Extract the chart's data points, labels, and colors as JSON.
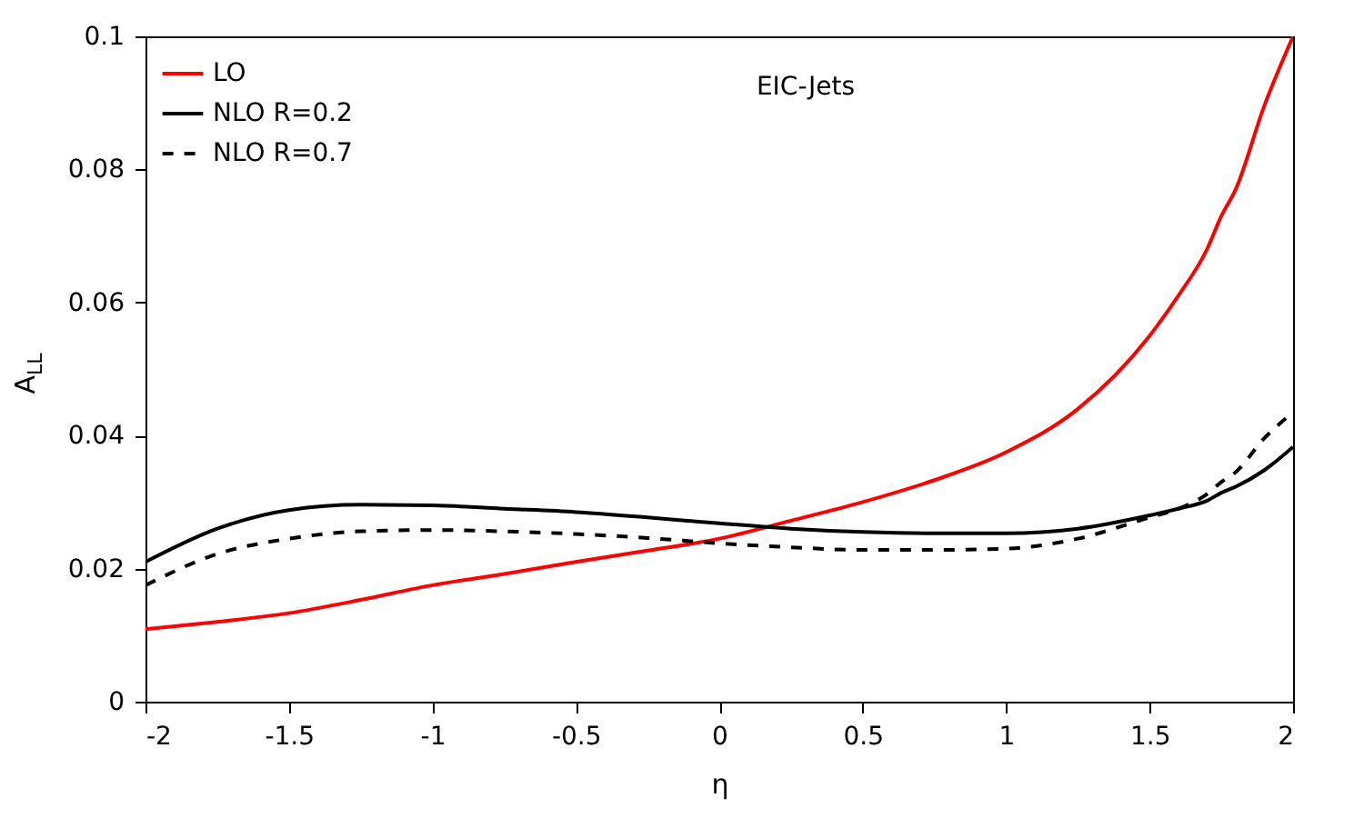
{
  "chart_data": {
    "type": "line",
    "xlabel": "η",
    "ylabel": "A$_{LL}$",
    "annotations": [
      "EIC-Jets"
    ],
    "legend": "top left",
    "grid": false,
    "x": [
      -2,
      -1.75,
      -1.5,
      -1.25,
      -1,
      -0.75,
      -0.5,
      -0.25,
      0,
      0.25,
      0.5,
      0.75,
      1,
      1.25,
      1.5,
      1.6,
      1.7,
      1.75,
      1.8,
      1.9,
      2
    ],
    "series": [
      {
        "name": "LO",
        "color": "#ff0000",
        "line_style": "solid",
        "values": [
          0.0109,
          0.012,
          0.0133,
          0.0153,
          0.0175,
          0.0192,
          0.021,
          0.0227,
          0.0245,
          0.0272,
          0.03,
          0.0333,
          0.0375,
          0.044,
          0.055,
          0.061,
          0.068,
          0.073,
          0.077,
          0.0896,
          0.1
        ]
      },
      {
        "name": "NLO R=0.2",
        "color": "#000000",
        "line_style": "solid",
        "values": [
          0.021,
          0.026,
          0.0288,
          0.0296,
          0.0295,
          0.029,
          0.0285,
          0.0277,
          0.0268,
          0.026,
          0.0255,
          0.0253,
          0.0253,
          0.026,
          0.028,
          0.029,
          0.0302,
          0.0314,
          0.0323,
          0.0348,
          0.0383
        ]
      },
      {
        "name": "NLO R=0.7",
        "color": "#000000",
        "line_style": "dashed",
        "values": [
          0.0175,
          0.0222,
          0.0245,
          0.0256,
          0.0258,
          0.0256,
          0.0252,
          0.0246,
          0.0238,
          0.0232,
          0.0228,
          0.0228,
          0.023,
          0.0245,
          0.0277,
          0.029,
          0.0312,
          0.033,
          0.0345,
          0.0396,
          0.0435
        ]
      }
    ],
    "xlim": [
      -2,
      2
    ],
    "ylim": [
      0,
      0.1
    ],
    "xticks": [
      -2,
      -1.5,
      -1,
      -0.5,
      0,
      0.5,
      1,
      1.5,
      2
    ],
    "yticks": [
      0,
      0.02,
      0.04,
      0.06,
      0.08,
      0.1
    ]
  }
}
